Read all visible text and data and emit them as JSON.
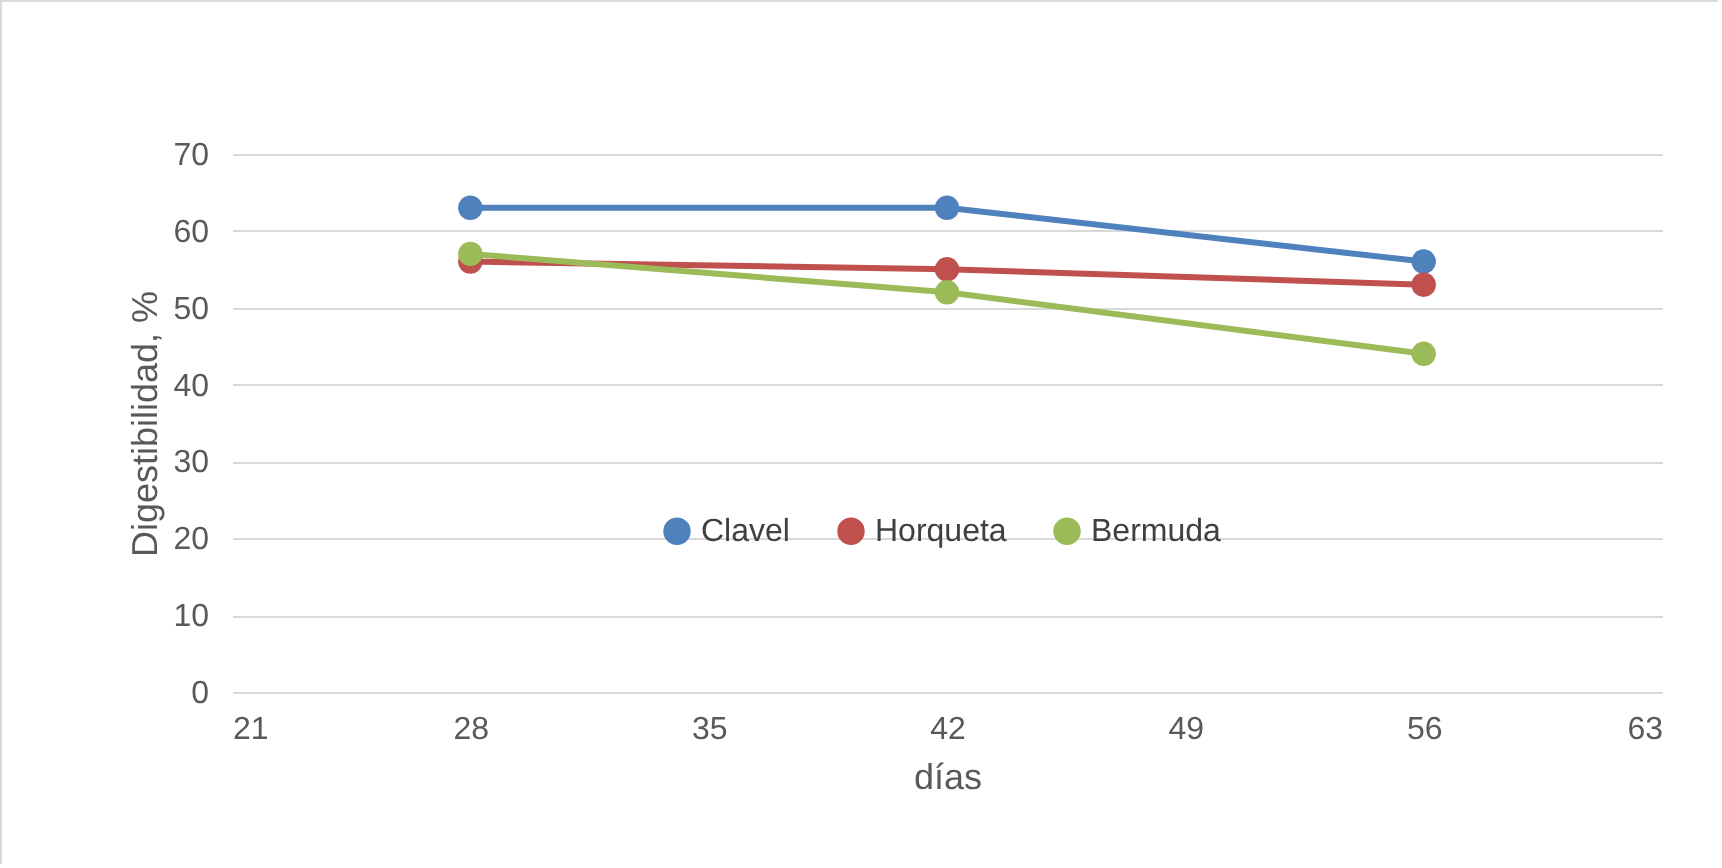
{
  "chart_data": {
    "type": "line",
    "xlabel": "días",
    "ylabel": "Digestibilidad, %",
    "x": [
      28,
      42,
      56
    ],
    "series": [
      {
        "name": "Clavel",
        "color": "#4f81bd",
        "values": [
          63,
          63,
          56
        ]
      },
      {
        "name": "Horqueta",
        "color": "#c0504d",
        "values": [
          56,
          55,
          53
        ]
      },
      {
        "name": "Bermuda",
        "color": "#9bbb59",
        "values": [
          57,
          52,
          44
        ]
      }
    ],
    "xlim": [
      21,
      63
    ],
    "xticks": [
      21,
      28,
      35,
      42,
      49,
      56,
      63
    ],
    "ylim": [
      0,
      70
    ],
    "yticks": [
      0,
      10,
      20,
      30,
      40,
      50,
      60,
      70
    ],
    "grid": "y",
    "legend": "bottom",
    "marker": "circle",
    "line_style": "solid"
  }
}
